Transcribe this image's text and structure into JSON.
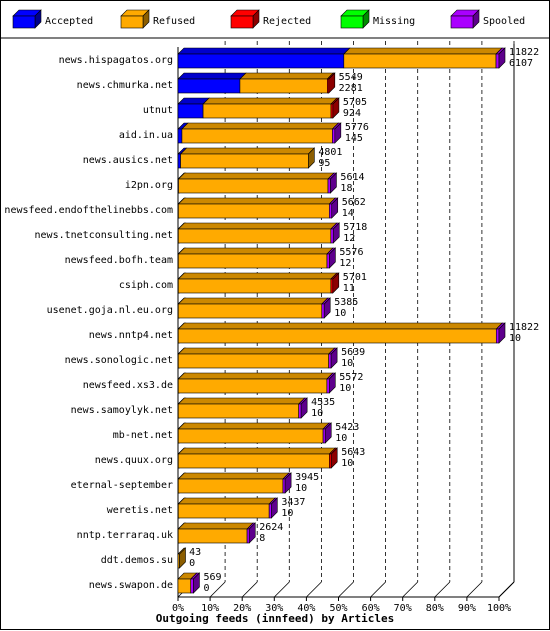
{
  "legend": [
    {
      "label": "Accepted",
      "color": "#0000ff"
    },
    {
      "label": "Refused",
      "color": "#ffaa00"
    },
    {
      "label": "Rejected",
      "color": "#ff0000"
    },
    {
      "label": "Missing",
      "color": "#00ff00"
    },
    {
      "label": "Spooled",
      "color": "#aa00ff"
    }
  ],
  "chart_data": {
    "type": "bar",
    "orientation": "horizontal",
    "stacked": true,
    "xlabel": "Outgoing feeds (innfeed) by Articles",
    "x_ticks": [
      "0%",
      "10%",
      "20%",
      "30%",
      "40%",
      "50%",
      "60%",
      "70%",
      "80%",
      "90%",
      "100%"
    ],
    "xlim": [
      0,
      11822
    ],
    "grid": true,
    "legend_position": "top",
    "categories": [
      "news.hispagatos.org",
      "news.chmurka.net",
      "utnut",
      "aid.in.ua",
      "news.ausics.net",
      "i2pn.org",
      "newsfeed.endofthelinebbs.com",
      "news.tnetconsulting.net",
      "newsfeed.bofh.team",
      "csiph.com",
      "usenet.goja.nl.eu.org",
      "news.nntp4.net",
      "news.sonologic.net",
      "newsfeed.xs3.de",
      "news.samoylyk.net",
      "mb-net.net",
      "news.quux.org",
      "eternal-september",
      "weretis.net",
      "nntp.terraraq.uk",
      "ddt.demos.su",
      "news.swapon.de"
    ],
    "totals": [
      11822,
      5549,
      5705,
      5776,
      4801,
      5614,
      5662,
      5718,
      5576,
      5701,
      5385,
      11822,
      5639,
      5572,
      4535,
      5423,
      5643,
      3945,
      3437,
      2624,
      43,
      569
    ],
    "accepted": [
      6107,
      2281,
      924,
      145,
      95,
      18,
      14,
      12,
      12,
      11,
      10,
      10,
      10,
      10,
      10,
      10,
      10,
      10,
      10,
      8,
      0,
      0
    ],
    "series": [
      {
        "name": "Accepted",
        "color": "#0000ff",
        "values": [
          6107,
          2281,
          924,
          145,
          95,
          18,
          14,
          12,
          12,
          11,
          10,
          10,
          10,
          10,
          10,
          10,
          10,
          10,
          10,
          8,
          0,
          0
        ]
      },
      {
        "name": "Refused",
        "color": "#ffaa00",
        "values": [
          5605,
          3218,
          4711,
          5541,
          4706,
          5506,
          5558,
          5616,
          5474,
          5620,
          5285,
          11712,
          5539,
          5472,
          4435,
          5333,
          5563,
          3855,
          3347,
          2536,
          43,
          469
        ]
      },
      {
        "name": "Rejected",
        "color": "#ff0000",
        "values": [
          0,
          50,
          70,
          0,
          0,
          0,
          0,
          0,
          0,
          70,
          0,
          0,
          0,
          0,
          0,
          0,
          70,
          0,
          0,
          0,
          0,
          0
        ]
      },
      {
        "name": "Missing",
        "color": "#00ff00",
        "values": [
          0,
          0,
          0,
          0,
          0,
          0,
          0,
          0,
          0,
          0,
          0,
          0,
          0,
          0,
          0,
          0,
          0,
          0,
          0,
          0,
          0,
          0
        ]
      },
      {
        "name": "Spooled",
        "color": "#aa00ff",
        "values": [
          110,
          0,
          0,
          90,
          0,
          90,
          90,
          90,
          90,
          0,
          90,
          100,
          90,
          90,
          90,
          80,
          0,
          80,
          80,
          80,
          0,
          100
        ]
      }
    ]
  }
}
